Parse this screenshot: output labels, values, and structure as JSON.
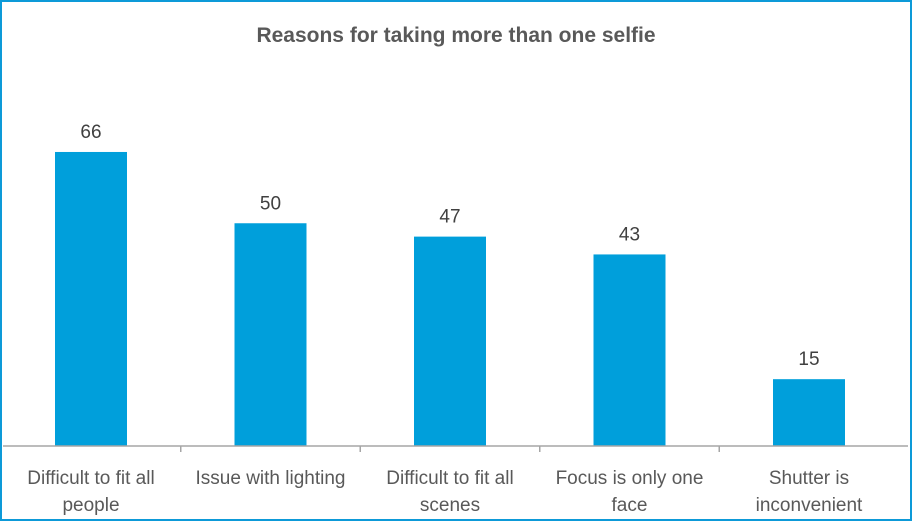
{
  "chart_data": {
    "type": "bar",
    "title": "Reasons for taking more than one selfie",
    "categories": [
      [
        "Difficult to fit all",
        "people"
      ],
      [
        "Issue with lighting"
      ],
      [
        "Difficult to fit all",
        "scenes"
      ],
      [
        "Focus is only one",
        "face"
      ],
      [
        "Shutter is",
        "inconvenient"
      ]
    ],
    "values": [
      66,
      50,
      47,
      43,
      15
    ],
    "data_labels": [
      "66",
      "50",
      "47",
      "43",
      "15"
    ],
    "xlabel": "",
    "ylabel": "",
    "ylim": [
      0,
      70
    ],
    "grid": false,
    "bar_color": "#009fdb",
    "border_color": "#0d9ad8"
  }
}
